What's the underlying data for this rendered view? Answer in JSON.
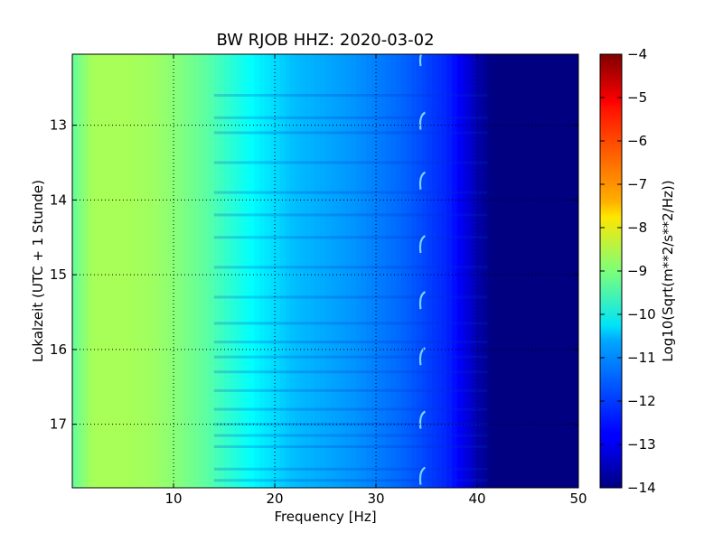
{
  "chart_data": {
    "type": "heatmap",
    "title": "BW RJOB HHZ: 2020-03-02",
    "xlabel": "Frequency [Hz]",
    "ylabel": "Lokalzeit (UTC + 1 Stunde)",
    "xlim": [
      0,
      50
    ],
    "ylim": [
      17.85,
      12.05
    ],
    "x_ticks": [
      10,
      20,
      30,
      40,
      50
    ],
    "y_ticks": [
      13,
      14,
      15,
      16,
      17
    ],
    "grid": "dotted",
    "colorbar": {
      "label": "Log10(Sqrt(m**2/s**2/Hz))",
      "range": [
        -14,
        -4
      ],
      "ticks": [
        -4,
        -5,
        -6,
        -7,
        -8,
        -9,
        -10,
        -11,
        -12,
        -13,
        -14
      ],
      "colormap": "jet"
    },
    "spectrum_profile": {
      "frequency_hz": [
        0,
        2,
        5,
        8,
        10,
        13,
        16,
        18,
        20,
        22,
        25,
        28,
        30,
        33,
        35,
        37,
        38,
        39,
        40,
        41,
        42,
        45,
        50
      ],
      "log10_amplitude": [
        -9.3,
        -8.6,
        -8.6,
        -8.7,
        -8.9,
        -9.3,
        -9.9,
        -10.3,
        -10.6,
        -10.9,
        -11.1,
        -11.3,
        -11.5,
        -11.8,
        -12.1,
        -12.4,
        -12.7,
        -13.1,
        -13.5,
        -13.9,
        -14.0,
        -14.0,
        -14.0
      ]
    },
    "transient_events": {
      "frequency_hz": 34.5,
      "local_time_hours": [
        12.1,
        12.95,
        13.75,
        14.6,
        15.35,
        16.1,
        16.95,
        17.7
      ]
    },
    "horizontal_bands_local_time": [
      12.6,
      12.9,
      13.1,
      13.5,
      13.9,
      14.2,
      14.5,
      14.9,
      15.3,
      15.65,
      15.9,
      16.1,
      16.3,
      16.55,
      16.8,
      17.0,
      17.15,
      17.3,
      17.6,
      17.75
    ]
  }
}
